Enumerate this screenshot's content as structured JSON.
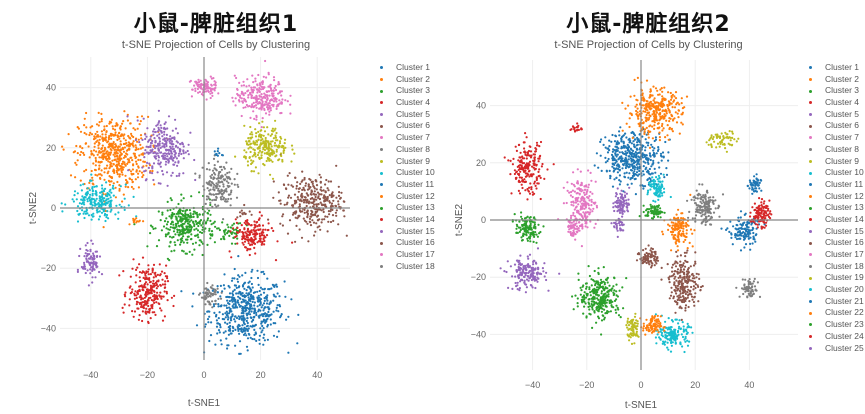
{
  "palette": [
    "#1f77b4",
    "#ff7f0e",
    "#2ca02c",
    "#d62728",
    "#9467bd",
    "#8c564b",
    "#e377c2",
    "#7f7f7f",
    "#bcbd22",
    "#17becf"
  ],
  "chart_data": [
    {
      "type": "scatter",
      "main_title": "小鼠-脾脏组织1",
      "title": "t-SNE Projection of Cells by Clustering",
      "xlabel": "t-SNE1",
      "ylabel": "t-SNE2",
      "xticks": [
        "−40",
        "−20",
        "0",
        "20",
        "40"
      ],
      "yticks": [
        "40",
        "20",
        "0",
        "−20",
        "−40"
      ],
      "xlim": [
        -50,
        52
      ],
      "ylim": [
        -52,
        50
      ],
      "grid": true,
      "legend_position": "right",
      "legend": [
        "Cluster 1",
        "Cluster 2",
        "Cluster 3",
        "Cluster 4",
        "Cluster 5",
        "Cluster 6",
        "Cluster 7",
        "Cluster 8",
        "Cluster 9",
        "Cluster 10",
        "Cluster 11",
        "Cluster 12",
        "Cluster 13",
        "Cluster 14",
        "Cluster 15",
        "Cluster 16",
        "Cluster 17",
        "Cluster 18"
      ],
      "clusters": [
        {
          "name": "Cluster 1",
          "color": "#1f77b4",
          "center": [
            15,
            -34
          ],
          "spread": [
            12,
            10
          ],
          "n": 520
        },
        {
          "name": "Cluster 2",
          "color": "#ff7f0e",
          "center": [
            -32,
            18
          ],
          "spread": [
            11,
            11
          ],
          "n": 520
        },
        {
          "name": "Cluster 3",
          "color": "#2ca02c",
          "center": [
            -6,
            -6
          ],
          "spread": [
            9,
            7
          ],
          "n": 320
        },
        {
          "name": "Cluster 4",
          "color": "#d62728",
          "center": [
            -20,
            -28
          ],
          "spread": [
            6,
            8
          ],
          "n": 260
        },
        {
          "name": "Cluster 5",
          "color": "#9467bd",
          "center": [
            -14,
            20
          ],
          "spread": [
            7,
            9
          ],
          "n": 260
        },
        {
          "name": "Cluster 6",
          "color": "#8c564b",
          "center": [
            38,
            2
          ],
          "spread": [
            10,
            8
          ],
          "n": 320
        },
        {
          "name": "Cluster 7",
          "color": "#e377c2",
          "center": [
            20,
            37
          ],
          "spread": [
            8,
            6
          ],
          "n": 260
        },
        {
          "name": "Cluster 8",
          "color": "#7f7f7f",
          "center": [
            5,
            8
          ],
          "spread": [
            5,
            7
          ],
          "n": 170
        },
        {
          "name": "Cluster 9",
          "color": "#bcbd22",
          "center": [
            22,
            20
          ],
          "spread": [
            7,
            6
          ],
          "n": 230
        },
        {
          "name": "Cluster 10",
          "color": "#17becf",
          "center": [
            -38,
            2
          ],
          "spread": [
            8,
            5
          ],
          "n": 220
        },
        {
          "name": "Cluster 11",
          "color": "#1f77b4",
          "center": [
            5,
            18
          ],
          "spread": [
            1.5,
            1.5
          ],
          "n": 10
        },
        {
          "name": "Cluster 12",
          "color": "#ff7f0e",
          "center": [
            -24,
            -4
          ],
          "spread": [
            2,
            1.5
          ],
          "n": 12
        },
        {
          "name": "Cluster 13",
          "color": "#2ca02c",
          "center": [
            10,
            -8
          ],
          "spread": [
            4,
            3
          ],
          "n": 40
        },
        {
          "name": "Cluster 14",
          "color": "#d62728",
          "center": [
            17,
            -9
          ],
          "spread": [
            6,
            5
          ],
          "n": 170
        },
        {
          "name": "Cluster 15",
          "color": "#9467bd",
          "center": [
            -40,
            -18
          ],
          "spread": [
            3,
            5
          ],
          "n": 90
        },
        {
          "name": "Cluster 16",
          "color": "#8c564b",
          "center": [
            14,
            -2
          ],
          "spread": [
            2,
            2
          ],
          "n": 12
        },
        {
          "name": "Cluster 17",
          "color": "#e377c2",
          "center": [
            0,
            40
          ],
          "spread": [
            4,
            3
          ],
          "n": 90
        },
        {
          "name": "Cluster 18",
          "color": "#7f7f7f",
          "center": [
            2,
            -29
          ],
          "spread": [
            3,
            3
          ],
          "n": 60
        }
      ]
    },
    {
      "type": "scatter",
      "main_title": "小鼠-脾脏组织2",
      "title": "t-SNE Projection of Cells by Clustering",
      "xlabel": "t-SNE1",
      "ylabel": "t-SNE2",
      "xticks": [
        "−40",
        "−20",
        "0",
        "20",
        "40"
      ],
      "yticks": [
        "40",
        "20",
        "0",
        "−20",
        "−40"
      ],
      "xlim": [
        -55,
        57
      ],
      "ylim": [
        -52,
        55
      ],
      "grid": true,
      "legend_position": "right",
      "legend": [
        "Cluster 1",
        "Cluster 2",
        "Cluster 3",
        "Cluster 4",
        "Cluster 5",
        "Cluster 6",
        "Cluster 7",
        "Cluster 8",
        "Cluster 9",
        "Cluster 10",
        "Cluster 11",
        "Cluster 12",
        "Cluster 13",
        "Cluster 14",
        "Cluster 15",
        "Cluster 16",
        "Cluster 17",
        "Cluster 18",
        "Cluster 19",
        "Cluster 20",
        "Cluster 21",
        "Cluster 22",
        "Cluster 23",
        "Cluster 24",
        "Cluster 25"
      ],
      "clusters": [
        {
          "name": "Cluster 1",
          "color": "#1f77b4",
          "center": [
            -3,
            22
          ],
          "spread": [
            10,
            8
          ],
          "n": 420
        },
        {
          "name": "Cluster 2",
          "color": "#ff7f0e",
          "center": [
            5,
            38
          ],
          "spread": [
            9,
            7
          ],
          "n": 330
        },
        {
          "name": "Cluster 3",
          "color": "#2ca02c",
          "center": [
            -15,
            -27
          ],
          "spread": [
            7,
            7
          ],
          "n": 280
        },
        {
          "name": "Cluster 4",
          "color": "#d62728",
          "center": [
            -42,
            18
          ],
          "spread": [
            5,
            8
          ],
          "n": 200
        },
        {
          "name": "Cluster 5",
          "color": "#9467bd",
          "center": [
            -42,
            -19
          ],
          "spread": [
            6,
            5
          ],
          "n": 170
        },
        {
          "name": "Cluster 6",
          "color": "#8c564b",
          "center": [
            16,
            -22
          ],
          "spread": [
            5,
            8
          ],
          "n": 230
        },
        {
          "name": "Cluster 7",
          "color": "#e377c2",
          "center": [
            -22,
            5
          ],
          "spread": [
            5,
            9
          ],
          "n": 200
        },
        {
          "name": "Cluster 8",
          "color": "#7f7f7f",
          "center": [
            23,
            5
          ],
          "spread": [
            4,
            6
          ],
          "n": 150
        },
        {
          "name": "Cluster 9",
          "color": "#bcbd22",
          "center": [
            30,
            28
          ],
          "spread": [
            5,
            3
          ],
          "n": 60
        },
        {
          "name": "Cluster 10",
          "color": "#17becf",
          "center": [
            12,
            -40
          ],
          "spread": [
            5,
            4
          ],
          "n": 160
        },
        {
          "name": "Cluster 11",
          "color": "#1f77b4",
          "center": [
            38,
            -4
          ],
          "spread": [
            5,
            5
          ],
          "n": 130
        },
        {
          "name": "Cluster 12",
          "color": "#ff7f0e",
          "center": [
            14,
            -3
          ],
          "spread": [
            4,
            5
          ],
          "n": 130
        },
        {
          "name": "Cluster 13",
          "color": "#2ca02c",
          "center": [
            -42,
            -3
          ],
          "spread": [
            4,
            4
          ],
          "n": 120
        },
        {
          "name": "Cluster 14",
          "color": "#d62728",
          "center": [
            44,
            2
          ],
          "spread": [
            3,
            4
          ],
          "n": 110
        },
        {
          "name": "Cluster 15",
          "color": "#9467bd",
          "center": [
            -7,
            6
          ],
          "spread": [
            2.5,
            4
          ],
          "n": 90
        },
        {
          "name": "Cluster 16",
          "color": "#8c564b",
          "center": [
            3,
            -13
          ],
          "spread": [
            3,
            3
          ],
          "n": 80
        },
        {
          "name": "Cluster 17",
          "color": "#e377c2",
          "center": [
            -25,
            -3
          ],
          "spread": [
            2,
            3
          ],
          "n": 40
        },
        {
          "name": "Cluster 18",
          "color": "#7f7f7f",
          "center": [
            40,
            -24
          ],
          "spread": [
            3,
            3
          ],
          "n": 70
        },
        {
          "name": "Cluster 19",
          "color": "#bcbd22",
          "center": [
            -3,
            -38
          ],
          "spread": [
            2,
            4
          ],
          "n": 70
        },
        {
          "name": "Cluster 20",
          "color": "#17becf",
          "center": [
            6,
            11
          ],
          "spread": [
            3,
            4
          ],
          "n": 80
        },
        {
          "name": "Cluster 21",
          "color": "#1f77b4",
          "center": [
            42,
            12
          ],
          "spread": [
            2,
            3
          ],
          "n": 50
        },
        {
          "name": "Cluster 22",
          "color": "#ff7f0e",
          "center": [
            4,
            -37
          ],
          "spread": [
            3,
            3
          ],
          "n": 90
        },
        {
          "name": "Cluster 23",
          "color": "#2ca02c",
          "center": [
            5,
            3
          ],
          "spread": [
            3,
            2
          ],
          "n": 70
        },
        {
          "name": "Cluster 24",
          "color": "#d62728",
          "center": [
            -24,
            32
          ],
          "spread": [
            2,
            1.5
          ],
          "n": 20
        },
        {
          "name": "Cluster 25",
          "color": "#9467bd",
          "center": [
            -8,
            -2
          ],
          "spread": [
            2,
            3
          ],
          "n": 30
        }
      ]
    }
  ]
}
